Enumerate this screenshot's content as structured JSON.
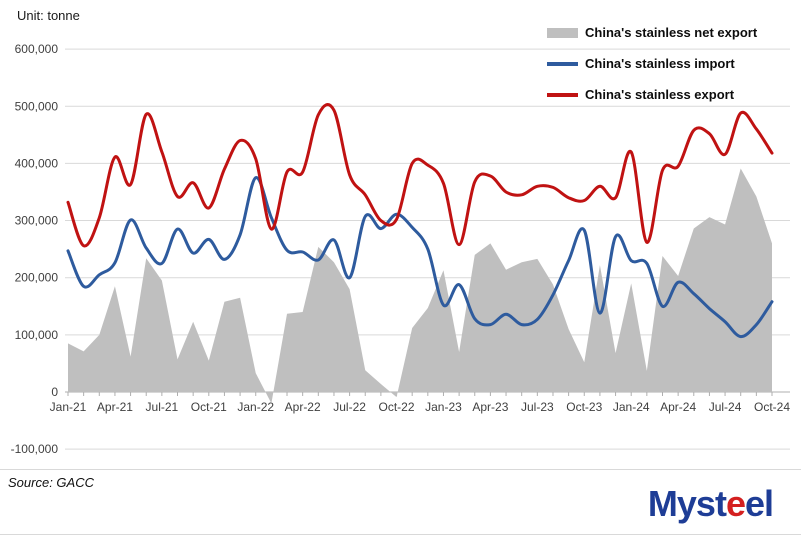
{
  "unit_label": "Unit: tonne",
  "source_label": "Source:  GACC",
  "logo": {
    "prefix": "Myst",
    "accent": "e",
    "suffix": "el"
  },
  "legend": [
    {
      "label": "China's stainless net export",
      "swatch": "area",
      "color": "#bfbfbf"
    },
    {
      "label": "China's stainless import",
      "swatch": "line",
      "color": "#2e5b9e"
    },
    {
      "label": "China's stainless export",
      "swatch": "line",
      "color": "#c01212"
    }
  ],
  "chart_data": {
    "type": "combo (area + smoothed lines)",
    "title": "",
    "xlabel": "",
    "ylabel": "tonne",
    "ylim": [
      -100000,
      600000
    ],
    "y_tick_values": [
      600000,
      500000,
      400000,
      300000,
      200000,
      100000,
      0,
      -100000
    ],
    "y_tick_labels": [
      "600,000",
      "500,000",
      "400,000",
      "300,000",
      "200,000",
      "100,000",
      "0",
      "-100,000"
    ],
    "x_tick_labels_shown": [
      "Jan-21",
      "Apr-21",
      "Jul-21",
      "Oct-21",
      "Jan-22",
      "Apr-22",
      "Jul-22",
      "Oct-22",
      "Jan-23",
      "Apr-23",
      "Jul-23",
      "Oct-23",
      "Jan-24",
      "Apr-24",
      "Jul-24",
      "Oct-24"
    ],
    "categories": [
      "Jan-21",
      "Feb-21",
      "Mar-21",
      "Apr-21",
      "May-21",
      "Jun-21",
      "Jul-21",
      "Aug-21",
      "Sep-21",
      "Oct-21",
      "Nov-21",
      "Dec-21",
      "Jan-22",
      "Feb-22",
      "Mar-22",
      "Apr-22",
      "May-22",
      "Jun-22",
      "Jul-22",
      "Aug-22",
      "Sep-22",
      "Oct-22",
      "Nov-22",
      "Dec-22",
      "Jan-23",
      "Feb-23",
      "Mar-23",
      "Apr-23",
      "May-23",
      "Jun-23",
      "Jul-23",
      "Aug-23",
      "Sep-23",
      "Oct-23",
      "Nov-23",
      "Dec-23",
      "Jan-24",
      "Feb-24",
      "Mar-24",
      "Apr-24",
      "May-24",
      "Jun-24",
      "Jul-24",
      "Aug-24",
      "Sep-24",
      "Oct-24"
    ],
    "series": [
      {
        "name": "China's stainless net export",
        "type": "area",
        "color": "#bfbfbf",
        "values": [
          85000,
          71000,
          100000,
          185000,
          62000,
          234000,
          195000,
          57000,
          123000,
          55000,
          158000,
          165000,
          33000,
          -20000,
          137000,
          140000,
          254000,
          227000,
          180000,
          38000,
          14000,
          -9000,
          112000,
          147000,
          213000,
          70000,
          240000,
          260000,
          214000,
          227000,
          233000,
          188000,
          110000,
          52000,
          222000,
          68000,
          190000,
          37000,
          238000,
          203000,
          286000,
          306000,
          293000,
          391000,
          342000,
          260000
        ]
      },
      {
        "name": "China's stainless import",
        "type": "line",
        "color": "#2e5b9e",
        "values": [
          247000,
          185000,
          205000,
          226000,
          301000,
          252000,
          225000,
          285000,
          243000,
          267000,
          232000,
          275000,
          375000,
          305000,
          248000,
          245000,
          231000,
          266000,
          200000,
          307000,
          286000,
          311000,
          288000,
          250000,
          152000,
          188000,
          128000,
          118000,
          136000,
          118000,
          127000,
          170000,
          230000,
          283000,
          138000,
          272000,
          230000,
          225000,
          150000,
          192000,
          172000,
          146000,
          123000,
          97000,
          118000,
          158000
        ]
      },
      {
        "name": "China's stainless export",
        "type": "line",
        "color": "#c01212",
        "values": [
          332000,
          256000,
          305000,
          411000,
          363000,
          486000,
          420000,
          342000,
          366000,
          322000,
          390000,
          440000,
          408000,
          285000,
          385000,
          385000,
          485000,
          493000,
          380000,
          345000,
          300000,
          302000,
          400000,
          397000,
          365000,
          258000,
          368000,
          378000,
          350000,
          345000,
          360000,
          358000,
          340000,
          335000,
          360000,
          340000,
          420000,
          262000,
          388000,
          395000,
          458000,
          452000,
          416000,
          488000,
          460000,
          418000
        ]
      }
    ],
    "grid": "horizontal gridlines on",
    "legend_position": "top-right, transparent background"
  }
}
